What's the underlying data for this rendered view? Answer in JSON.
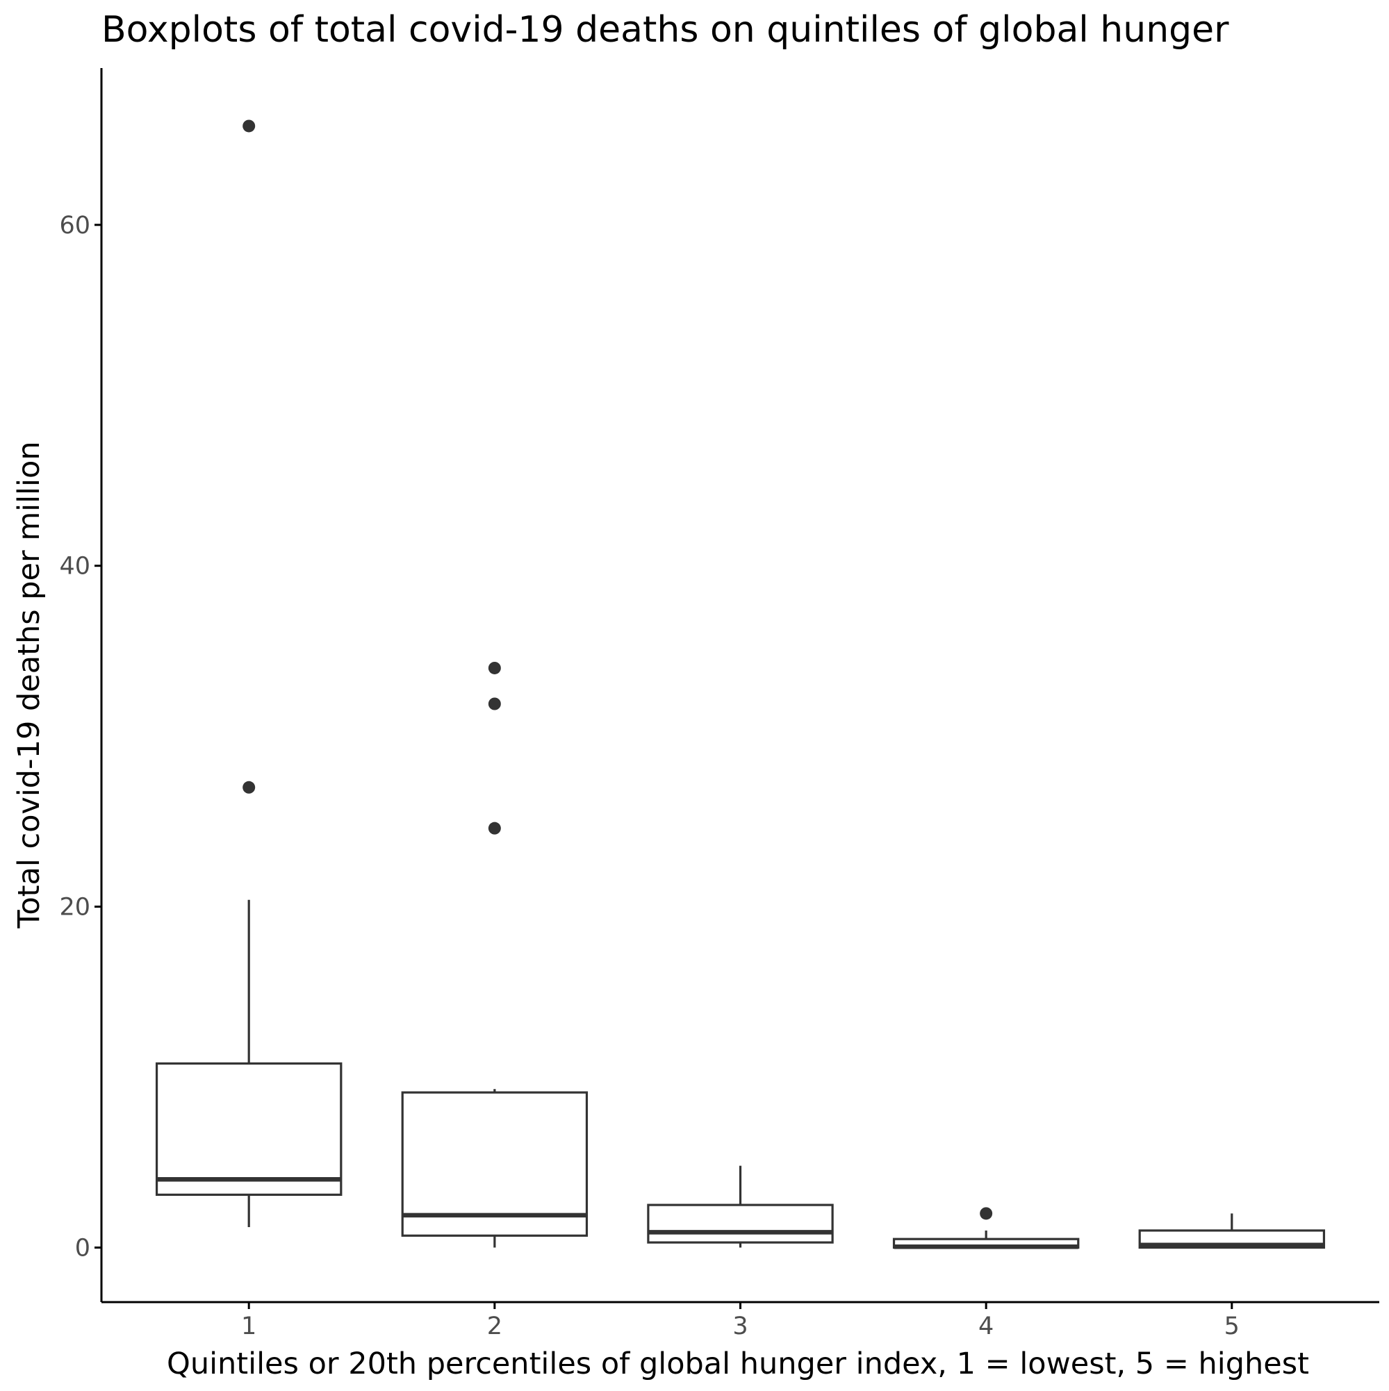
{
  "chart_data": {
    "type": "boxplot",
    "title": "Boxplots of total covid-19 deaths on quintiles of global hunger",
    "xlabel": "Quintiles or 20th percentiles of global hunger index, 1 = lowest, 5 = highest",
    "ylabel": "Total covid-19 deaths per million",
    "categories": [
      "1",
      "2",
      "3",
      "4",
      "5"
    ],
    "y_ticks": [
      0,
      20,
      40,
      60
    ],
    "y_tick_labels": [
      "0",
      "20",
      "40",
      "60"
    ],
    "ylim": [
      -3.2,
      69.2
    ],
    "grid": false,
    "legend": "none",
    "boxes": [
      {
        "category": "1",
        "whisker_low": 1.2,
        "q1": 3.1,
        "median": 4.0,
        "q3": 10.8,
        "whisker_high": 20.4,
        "outliers": [
          27.0,
          65.8
        ]
      },
      {
        "category": "2",
        "whisker_low": 0.0,
        "q1": 0.7,
        "median": 1.9,
        "q3": 9.1,
        "whisker_high": 9.3,
        "outliers": [
          24.6,
          31.9,
          34.0
        ]
      },
      {
        "category": "3",
        "whisker_low": 0.0,
        "q1": 0.3,
        "median": 0.9,
        "q3": 2.5,
        "whisker_high": 4.8,
        "outliers": []
      },
      {
        "category": "4",
        "whisker_low": 0.0,
        "q1": 0.0,
        "median": 0.05,
        "q3": 0.5,
        "whisker_high": 1.0,
        "outliers": [
          2.0
        ]
      },
      {
        "category": "5",
        "whisker_low": 0.0,
        "q1": 0.0,
        "median": 0.15,
        "q3": 1.0,
        "whisker_high": 2.0,
        "outliers": []
      }
    ],
    "colors": {
      "box_line": "#333333",
      "outlier": "#333333",
      "axis": "#000000",
      "tick_label": "#4d4d4d",
      "background": "#ffffff"
    }
  }
}
